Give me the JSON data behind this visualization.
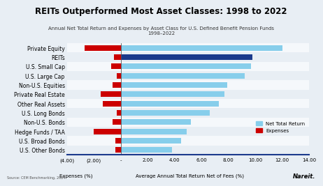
{
  "title": "REITs Outperformed Most Asset Classes: 1998 to 2022",
  "subtitle": "Annual Net Total Return and Expenses by Asset Class for U.S. Defined Benefit Pension Funds\n1998–2022",
  "categories": [
    "Private Equity",
    "REITs",
    "U.S. Small Cap",
    "U.S. Large Cap",
    "Non-U.S. Equities",
    "Private Real Estate",
    "Other Real Assets",
    "U.S. Long Bonds",
    "Non-U.S. Bonds",
    "Hedge Funds / TAA",
    "U.S. Broad Bonds",
    "U.S. Other Bonds"
  ],
  "net_return": [
    12.0,
    9.8,
    9.7,
    9.2,
    7.9,
    7.7,
    7.3,
    6.6,
    5.2,
    4.9,
    4.5,
    3.8
  ],
  "expenses": [
    -2.7,
    -0.5,
    -0.7,
    -0.3,
    -0.6,
    -1.5,
    -1.3,
    -0.3,
    -0.6,
    -2.0,
    -0.4,
    -0.4
  ],
  "return_colors": [
    "#87CEEB",
    "#1B3A8C",
    "#87CEEB",
    "#87CEEB",
    "#87CEEB",
    "#87CEEB",
    "#87CEEB",
    "#87CEEB",
    "#87CEEB",
    "#87CEEB",
    "#87CEEB",
    "#87CEEB"
  ],
  "expense_color": "#CC0000",
  "row_colors": [
    "#E8EEF4",
    "#F5F8FB"
  ],
  "xlabel_left": "Expenses (%)",
  "xlabel_right": "Average Annual Total Return Net of Fees (%)",
  "xlim_left": -4.0,
  "xlim_right": 14.0,
  "xticks": [
    -4.0,
    -2.0,
    0.0,
    2.0,
    4.0,
    6.0,
    8.0,
    10.0,
    12.0,
    14.0
  ],
  "xtick_labels": [
    "(4.00)",
    "(2.00)",
    "-",
    "2.00",
    "4.00",
    "6.00",
    "8.00",
    "10.00",
    "12.00",
    "14.00"
  ],
  "legend_return_label": "Net Total Return",
  "legend_expense_label": "Expenses",
  "source_text": "Source: CEM Benchmarking, 2024.",
  "nareit_text": "Nareit.",
  "background_color": "#E8EEF4",
  "title_fontsize": 8.5,
  "subtitle_fontsize": 5.0,
  "label_fontsize": 5.5,
  "tick_fontsize": 5.0,
  "bar_height": 0.6
}
